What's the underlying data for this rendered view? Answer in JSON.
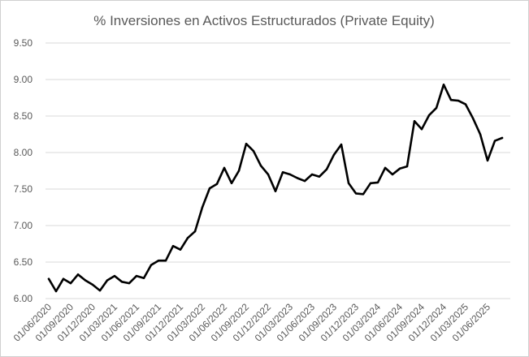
{
  "chart_data": {
    "type": "line",
    "title": "% Inversiones en Activos Estructurados (Private Equity)",
    "xlabel": "",
    "ylabel": "",
    "ylim": [
      6.0,
      9.5
    ],
    "yticks": [
      "6.00",
      "6.50",
      "7.00",
      "7.50",
      "8.00",
      "8.50",
      "9.00",
      "9.50"
    ],
    "xtick_labels": [
      "01/06/2020",
      "01/09/2020",
      "01/12/2020",
      "01/03/2021",
      "01/06/2021",
      "01/09/2021",
      "01/12/2021",
      "01/03/2022",
      "01/06/2022",
      "01/09/2022",
      "01/12/2022",
      "01/03/2023",
      "01/06/2023",
      "01/09/2023",
      "01/12/2023",
      "01/03/2024",
      "01/06/2024",
      "01/09/2024",
      "01/12/2024",
      "01/03/2025",
      "01/06/2025"
    ],
    "grid": true,
    "line_color": "#000000",
    "series": [
      {
        "name": "",
        "values": [
          6.27,
          6.1,
          6.27,
          6.21,
          6.33,
          6.25,
          6.19,
          6.11,
          6.25,
          6.31,
          6.23,
          6.21,
          6.31,
          6.28,
          6.46,
          6.52,
          6.52,
          6.72,
          6.67,
          6.83,
          6.92,
          7.25,
          7.51,
          7.57,
          7.79,
          7.58,
          7.75,
          8.12,
          8.02,
          7.82,
          7.7,
          7.47,
          7.73,
          7.7,
          7.65,
          7.61,
          7.7,
          7.67,
          7.77,
          7.97,
          8.11,
          7.58,
          7.44,
          7.43,
          7.58,
          7.59,
          7.79,
          7.7,
          7.78,
          7.81,
          8.43,
          8.32,
          8.51,
          8.61,
          8.93,
          8.72,
          8.71,
          8.66,
          8.47,
          8.25,
          7.89,
          8.16,
          8.2
        ]
      }
    ]
  }
}
